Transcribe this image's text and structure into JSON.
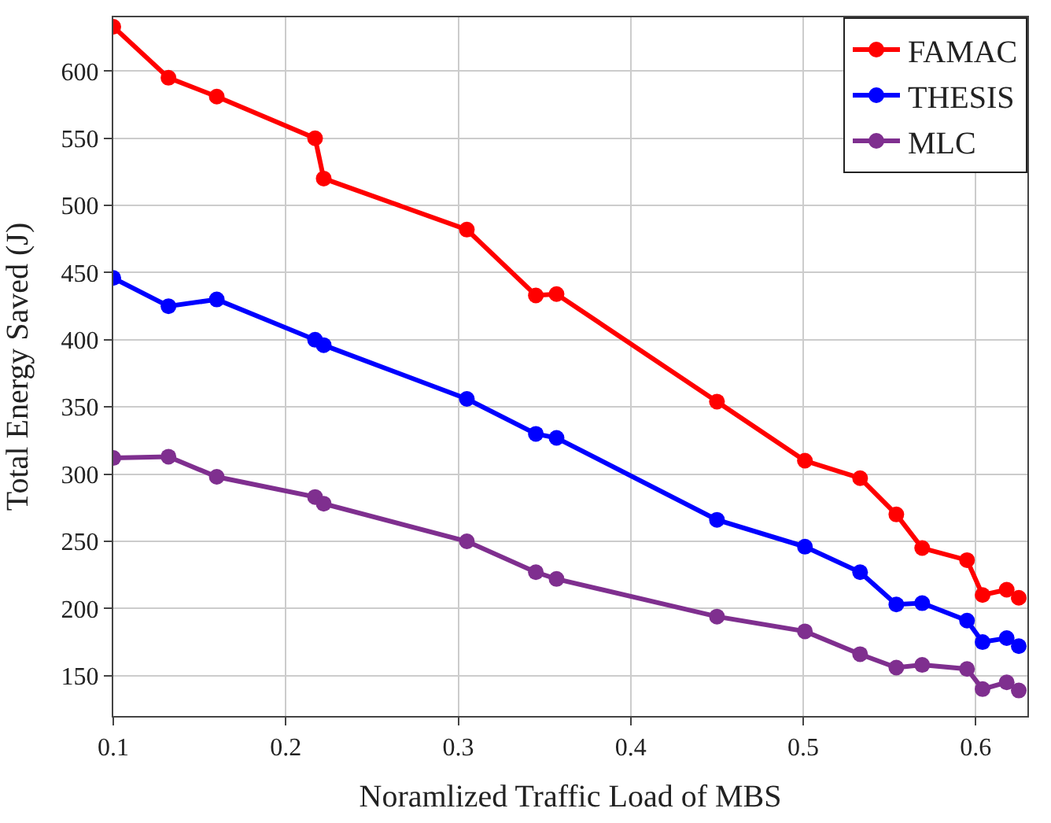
{
  "chart_data": {
    "type": "line",
    "xlabel": "Noramlized Traffic Load of MBS",
    "ylabel": "Total Energy Saved (J)",
    "x": [
      0.1,
      0.132,
      0.16,
      0.217,
      0.222,
      0.305,
      0.345,
      0.357,
      0.45,
      0.501,
      0.533,
      0.554,
      0.569,
      0.595,
      0.604,
      0.618,
      0.625
    ],
    "series": [
      {
        "name": "FAMAC",
        "color": "#ff0000",
        "values": [
          633,
          595,
          581,
          550,
          520,
          482,
          433,
          434,
          354,
          310,
          297,
          270,
          245,
          236,
          210,
          214,
          208
        ]
      },
      {
        "name": "THESIS",
        "color": "#0000ff",
        "values": [
          446,
          425,
          430,
          400,
          396,
          356,
          330,
          327,
          266,
          246,
          227,
          203,
          204,
          191,
          175,
          178,
          172
        ]
      },
      {
        "name": "MLC",
        "color": "#7f2f8f",
        "values": [
          312,
          313,
          298,
          283,
          278,
          250,
          227,
          222,
          194,
          183,
          166,
          156,
          158,
          155,
          140,
          145,
          139
        ]
      }
    ],
    "xlim": [
      0.1,
      0.63
    ],
    "ylim": [
      120,
      640
    ],
    "xticks": [
      0.1,
      0.2,
      0.3,
      0.4,
      0.5,
      0.6
    ],
    "yticks": [
      150,
      200,
      250,
      300,
      350,
      400,
      450,
      500,
      550,
      600
    ],
    "grid": true,
    "legend": "top right",
    "marker": "circle",
    "line_style": "solid"
  }
}
